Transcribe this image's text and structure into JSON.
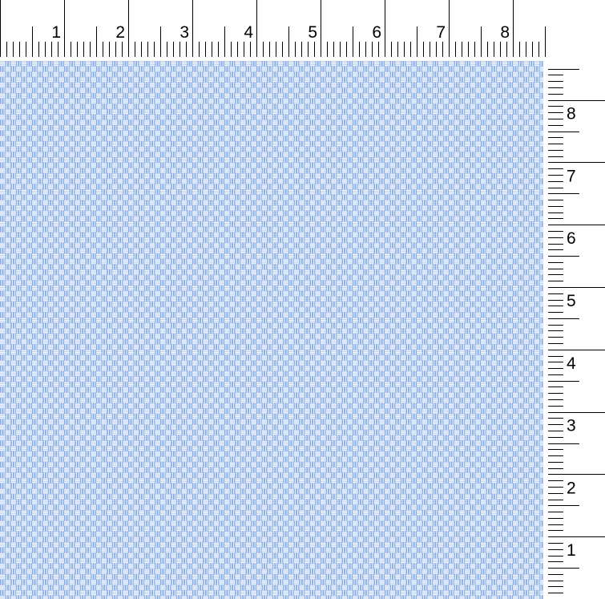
{
  "fabric_preview": {
    "colors": {
      "base": "#82a9e4",
      "thread": "#ffffff",
      "light": "#c9daf5"
    },
    "pattern": "basketweave-check",
    "repeats_per_inch": 6
  },
  "top_ruler": {
    "unit": "inch",
    "labels": [
      "1",
      "2",
      "3",
      "4",
      "5",
      "6",
      "7",
      "8"
    ]
  },
  "right_ruler": {
    "unit": "inch",
    "labels": [
      "1",
      "2",
      "3",
      "4",
      "5",
      "6",
      "7",
      "8"
    ]
  }
}
